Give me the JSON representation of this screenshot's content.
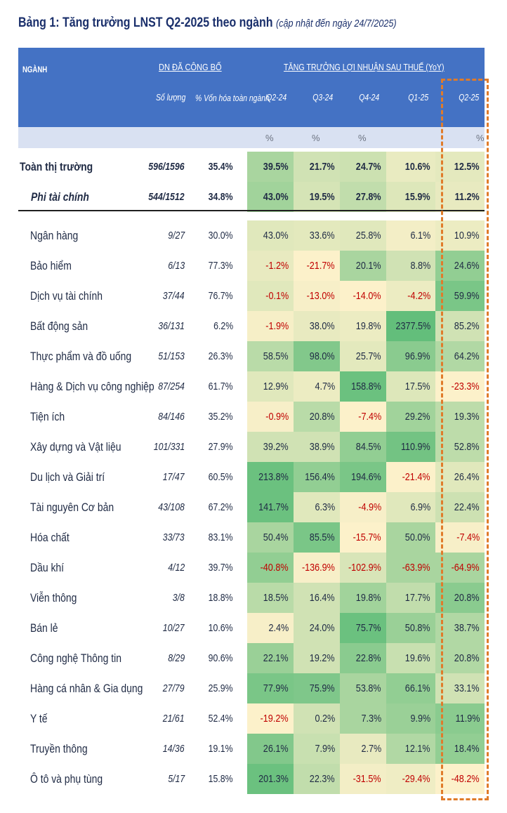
{
  "title": {
    "main": "Bảng 1: Tăng trưởng LNST Q2-2025 theo ngành",
    "note": "(cập nhật đến ngày 24/7/2025)"
  },
  "header": {
    "nganh": "NGÀNH",
    "dn_group": "DN ĐÃ CÔNG BỐ",
    "growth_group": "TĂNG TRƯỞNG LỢI NHUẬN SAU THUẾ (YoY)",
    "so_luong": "Số lượng",
    "von_hoa": "% Vốn hóa toàn ngành",
    "quarters": [
      "Q2-24",
      "Q3-24",
      "Q4-24",
      "Q1-25",
      "Q2-25"
    ],
    "unit": "%"
  },
  "colors": {
    "header_bg": "#4472c4",
    "highlight": "#e07b2a",
    "negative": "#c00000"
  },
  "summary_rows": [
    {
      "name": "Toàn thị trường",
      "count": "596/1596",
      "cap": "35.4%",
      "values": [
        "39.5%",
        "21.7%",
        "24.7%",
        "10.6%",
        "12.5%"
      ],
      "heat": [
        0.55,
        0.3,
        0.33,
        0.14,
        0.17
      ]
    },
    {
      "name": "Phi tài chính",
      "count": "544/1512",
      "cap": "34.8%",
      "values": [
        "43.0%",
        "19.5%",
        "27.8%",
        "15.9%",
        "11.2%"
      ],
      "heat": [
        0.6,
        0.27,
        0.4,
        0.22,
        0.15
      ]
    }
  ],
  "rows": [
    {
      "name": "Ngân hàng",
      "count": "9/27",
      "cap": "30.0%",
      "values": [
        "43.0%",
        "33.6%",
        "25.8%",
        "6.1%",
        "10.9%"
      ],
      "heat": [
        0.2,
        0.18,
        0.2,
        0.08,
        0.12
      ]
    },
    {
      "name": "Bảo hiểm",
      "count": "6/13",
      "cap": "77.3%",
      "values": [
        "-1.2%",
        "-21.7%",
        "20.1%",
        "8.8%",
        "24.6%"
      ],
      "heat": [
        0.15,
        0.02,
        0.55,
        0.3,
        0.7
      ]
    },
    {
      "name": "Dịch vụ tài chính",
      "count": "37/44",
      "cap": "76.7%",
      "values": [
        "-0.1%",
        "-13.0%",
        "-14.0%",
        "-4.2%",
        "59.9%"
      ],
      "heat": [
        0.2,
        0.05,
        0.02,
        0.12,
        0.85
      ]
    },
    {
      "name": "Bất động sản",
      "count": "36/131",
      "cap": "6.2%",
      "values": [
        "-1.9%",
        "38.0%",
        "19.8%",
        "2377.5%",
        "85.2%"
      ],
      "heat": [
        0.06,
        0.15,
        0.12,
        1.0,
        0.3
      ]
    },
    {
      "name": "Thực phẩm và đồ uống",
      "count": "51/153",
      "cap": "26.3%",
      "values": [
        "58.5%",
        "98.0%",
        "25.7%",
        "96.9%",
        "64.2%"
      ],
      "heat": [
        0.45,
        0.8,
        0.18,
        0.75,
        0.5
      ]
    },
    {
      "name": "Hàng & Dịch vụ công nghiệp",
      "count": "87/254",
      "cap": "61.7%",
      "values": [
        "12.9%",
        "4.7%",
        "158.8%",
        "17.5%",
        "-23.3%"
      ],
      "heat": [
        0.2,
        0.12,
        0.95,
        0.22,
        0.02
      ]
    },
    {
      "name": "Tiện ích",
      "count": "84/146",
      "cap": "35.2%",
      "values": [
        "-0.9%",
        "20.8%",
        "-7.4%",
        "29.2%",
        "19.3%"
      ],
      "heat": [
        0.05,
        0.45,
        0.02,
        0.6,
        0.42
      ]
    },
    {
      "name": "Xây dựng và Vật liệu",
      "count": "101/331",
      "cap": "27.9%",
      "values": [
        "39.2%",
        "38.9%",
        "84.5%",
        "110.9%",
        "52.8%"
      ],
      "heat": [
        0.3,
        0.3,
        0.7,
        0.9,
        0.42
      ]
    },
    {
      "name": "Du lịch và Giải trí",
      "count": "17/47",
      "cap": "60.5%",
      "values": [
        "213.8%",
        "156.4%",
        "194.6%",
        "-21.4%",
        "26.4%"
      ],
      "heat": [
        0.95,
        0.7,
        0.85,
        0.02,
        0.2
      ]
    },
    {
      "name": "Tài nguyên Cơ bản",
      "count": "43/108",
      "cap": "67.2%",
      "values": [
        "141.7%",
        "6.3%",
        "-4.9%",
        "6.9%",
        "22.4%"
      ],
      "heat": [
        0.95,
        0.2,
        0.05,
        0.2,
        0.32
      ]
    },
    {
      "name": "Hóa chất",
      "count": "33/73",
      "cap": "83.1%",
      "values": [
        "50.4%",
        "85.5%",
        "-15.7%",
        "50.0%",
        "-7.4%"
      ],
      "heat": [
        0.55,
        0.85,
        0.02,
        0.55,
        0.05
      ]
    },
    {
      "name": "Dầu khí",
      "count": "4/12",
      "cap": "39.7%",
      "values": [
        "-40.8%",
        "-136.9%",
        "-102.9%",
        "-63.9%",
        "-64.9%"
      ],
      "heat": [
        0.7,
        0.05,
        0.25,
        0.55,
        0.55
      ]
    },
    {
      "name": "Viễn thông",
      "count": "3/8",
      "cap": "18.8%",
      "values": [
        "18.5%",
        "16.4%",
        "19.8%",
        "17.7%",
        "20.8%"
      ],
      "heat": [
        0.45,
        0.3,
        0.6,
        0.4,
        0.75
      ]
    },
    {
      "name": "Bán lẻ",
      "count": "10/27",
      "cap": "10.6%",
      "values": [
        "2.4%",
        "24.0%",
        "75.7%",
        "50.8%",
        "38.7%"
      ],
      "heat": [
        0.05,
        0.3,
        0.95,
        0.65,
        0.5
      ]
    },
    {
      "name": "Công nghệ Thông tin",
      "count": "8/29",
      "cap": "90.6%",
      "values": [
        "22.1%",
        "19.2%",
        "22.8%",
        "19.6%",
        "20.8%"
      ],
      "heat": [
        0.65,
        0.3,
        0.75,
        0.35,
        0.5
      ]
    },
    {
      "name": "Hàng cá nhân & Gia dụng",
      "count": "27/79",
      "cap": "25.9%",
      "values": [
        "77.9%",
        "75.9%",
        "53.8%",
        "66.1%",
        "33.1%"
      ],
      "heat": [
        0.85,
        0.82,
        0.55,
        0.7,
        0.3
      ]
    },
    {
      "name": "Y tế",
      "count": "21/61",
      "cap": "52.4%",
      "values": [
        "-19.2%",
        "0.2%",
        "7.3%",
        "9.9%",
        "11.9%"
      ],
      "heat": [
        0.02,
        0.3,
        0.55,
        0.65,
        0.75
      ]
    },
    {
      "name": "Truyền thông",
      "count": "14/36",
      "cap": "19.1%",
      "values": [
        "26.1%",
        "7.9%",
        "2.7%",
        "12.1%",
        "18.4%"
      ],
      "heat": [
        0.8,
        0.35,
        0.15,
        0.5,
        0.7
      ]
    },
    {
      "name": "Ô tô và phụ tùng",
      "count": "5/17",
      "cap": "15.8%",
      "values": [
        "201.3%",
        "22.3%",
        "-31.5%",
        "-29.4%",
        "-48.2%"
      ],
      "heat": [
        0.95,
        0.4,
        0.08,
        0.1,
        0.02
      ]
    }
  ]
}
